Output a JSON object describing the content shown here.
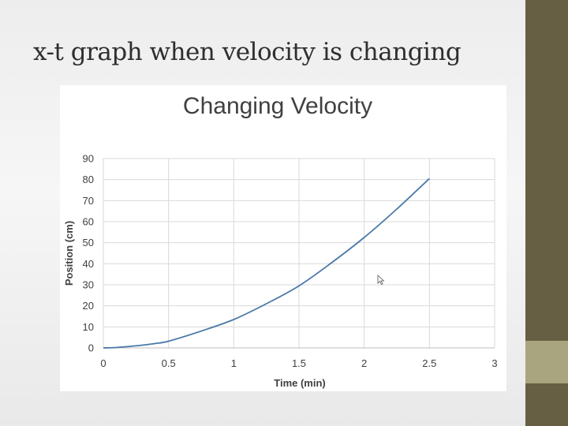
{
  "slide": {
    "title": "x-t graph when velocity is changing"
  },
  "colors": {
    "sidebar": "#675f44",
    "sidebar_accent": "#a8a57f",
    "series_line": "#4a79a8",
    "grid": "#d9d9d9"
  },
  "chart_data": {
    "type": "line",
    "title": "Changing Velocity",
    "xlabel": "Time (min)",
    "ylabel": "Position (cm)",
    "xlim": [
      0,
      3
    ],
    "ylim": [
      0,
      90
    ],
    "x_ticks": [
      "0",
      "0.5",
      "1",
      "1.5",
      "2",
      "2.5",
      "3"
    ],
    "y_ticks": [
      "0",
      "10",
      "20",
      "30",
      "40",
      "50",
      "60",
      "70",
      "80",
      "90"
    ],
    "grid": true,
    "legend": "none",
    "series": [
      {
        "x": [
          0,
          0.1,
          0.2,
          0.3,
          0.4,
          0.5,
          0.75,
          1.0,
          1.25,
          1.5,
          1.75,
          2.0,
          2.25,
          2.5
        ],
        "y": [
          0,
          0.2,
          0.7,
          1.3,
          2.1,
          3.2,
          8.0,
          13.5,
          21.0,
          29.5,
          40.5,
          52.5,
          66.0,
          80.5
        ]
      }
    ]
  }
}
